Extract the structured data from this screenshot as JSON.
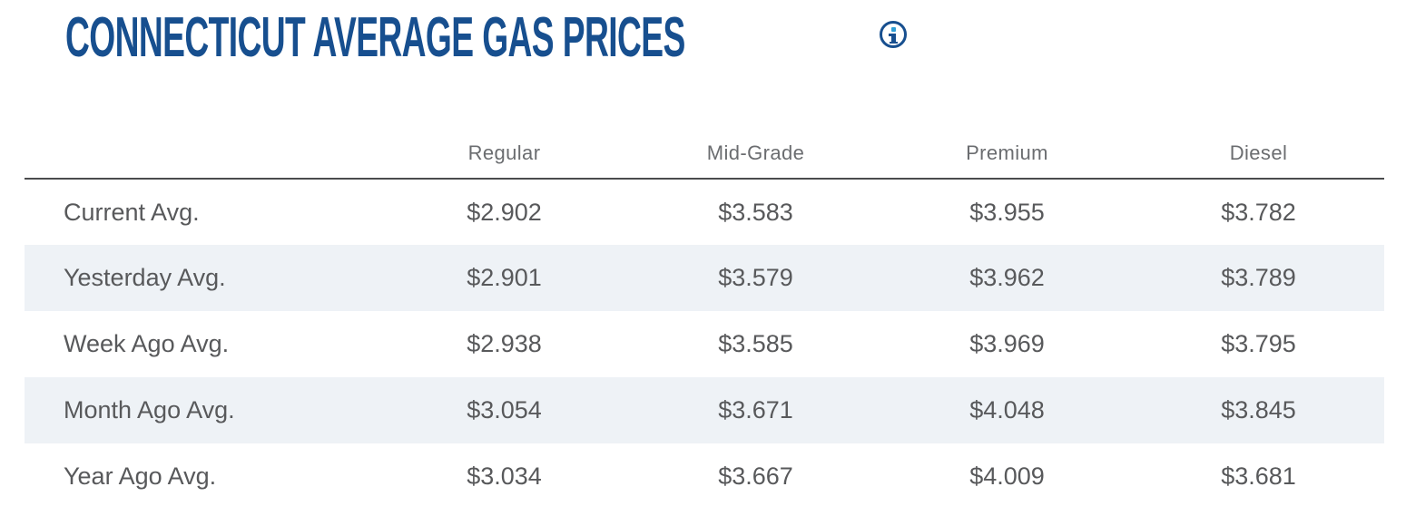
{
  "header": {
    "title": "CONNECTICUT AVERAGE GAS PRICES",
    "info_icon": "info-icon"
  },
  "table": {
    "column_headers": [
      "Regular",
      "Mid-Grade",
      "Premium",
      "Diesel"
    ],
    "rows": [
      {
        "label": "Current Avg.",
        "values": [
          "$2.902",
          "$3.583",
          "$3.955",
          "$3.782"
        ]
      },
      {
        "label": "Yesterday Avg.",
        "values": [
          "$2.901",
          "$3.579",
          "$3.962",
          "$3.789"
        ]
      },
      {
        "label": "Week Ago Avg.",
        "values": [
          "$2.938",
          "$3.585",
          "$3.969",
          "$3.795"
        ]
      },
      {
        "label": "Month Ago Avg.",
        "values": [
          "$3.054",
          "$3.671",
          "$4.048",
          "$3.845"
        ]
      },
      {
        "label": "Year Ago Avg.",
        "values": [
          "$3.034",
          "$3.667",
          "$4.009",
          "$3.681"
        ]
      }
    ]
  },
  "colors": {
    "title_navy": "#174f8f",
    "info_dot_cyan": "#2f9fd7",
    "header_text_gray": "#6b6d70",
    "body_text_gray": "#58595b",
    "row_stripe": "#eef2f6",
    "divider": "#4a4b4d"
  }
}
